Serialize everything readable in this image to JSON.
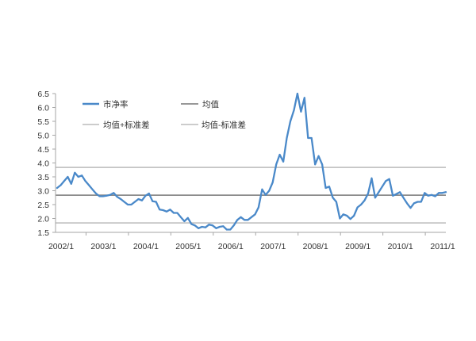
{
  "chart_data": {
    "type": "line",
    "ylim": [
      1.5,
      6.5
    ],
    "grid": false,
    "legend": "top-left",
    "yticks": [
      "1.5",
      "2.0",
      "2.5",
      "3.0",
      "3.5",
      "4.0",
      "4.5",
      "5.0",
      "5.5",
      "6.0",
      "6.5"
    ],
    "xticks": [
      "2002/1",
      "2003/1",
      "2004/1",
      "2005/1",
      "2006/1",
      "2007/1",
      "2008/1",
      "2009/1",
      "2010/1",
      "2011/1"
    ],
    "x": [
      "2002/1",
      "2002/2",
      "2002/3",
      "2002/4",
      "2002/5",
      "2002/6",
      "2002/7",
      "2002/8",
      "2002/9",
      "2002/10",
      "2002/11",
      "2002/12",
      "2003/1",
      "2003/2",
      "2003/3",
      "2003/4",
      "2003/5",
      "2003/6",
      "2003/7",
      "2003/8",
      "2003/9",
      "2003/10",
      "2003/11",
      "2003/12",
      "2004/1",
      "2004/2",
      "2004/3",
      "2004/4",
      "2004/5",
      "2004/6",
      "2004/7",
      "2004/8",
      "2004/9",
      "2004/10",
      "2004/11",
      "2004/12",
      "2005/1",
      "2005/2",
      "2005/3",
      "2005/4",
      "2005/5",
      "2005/6",
      "2005/7",
      "2005/8",
      "2005/9",
      "2005/10",
      "2005/11",
      "2005/12",
      "2006/1",
      "2006/2",
      "2006/3",
      "2006/4",
      "2006/5",
      "2006/6",
      "2006/7",
      "2006/8",
      "2006/9",
      "2006/10",
      "2006/11",
      "2006/12",
      "2007/1",
      "2007/2",
      "2007/3",
      "2007/4",
      "2007/5",
      "2007/6",
      "2007/7",
      "2007/8",
      "2007/9",
      "2007/10",
      "2007/11",
      "2007/12",
      "2008/1",
      "2008/2",
      "2008/3",
      "2008/4",
      "2008/5",
      "2008/6",
      "2008/7",
      "2008/8",
      "2008/9",
      "2008/10",
      "2008/11",
      "2008/12",
      "2009/1",
      "2009/2",
      "2009/3",
      "2009/4",
      "2009/5",
      "2009/6",
      "2009/7",
      "2009/8",
      "2009/9",
      "2009/10",
      "2009/11",
      "2009/12",
      "2010/1",
      "2010/2",
      "2010/3",
      "2010/4",
      "2010/5",
      "2010/6",
      "2010/7",
      "2010/8",
      "2010/9",
      "2010/10",
      "2010/11",
      "2010/12",
      "2011/1",
      "2011/2",
      "2011/3"
    ],
    "series": [
      {
        "name": "市净率",
        "color": "#4a89c9",
        "values": [
          3.1,
          3.2,
          3.35,
          3.5,
          3.25,
          3.65,
          3.5,
          3.55,
          3.35,
          3.2,
          3.05,
          2.9,
          2.8,
          2.8,
          2.82,
          2.85,
          2.92,
          2.78,
          2.7,
          2.6,
          2.5,
          2.5,
          2.6,
          2.7,
          2.65,
          2.82,
          2.9,
          2.62,
          2.6,
          2.32,
          2.3,
          2.25,
          2.32,
          2.2,
          2.2,
          2.05,
          1.9,
          2.02,
          1.8,
          1.75,
          1.65,
          1.7,
          1.68,
          1.78,
          1.75,
          1.65,
          1.7,
          1.72,
          1.6,
          1.6,
          1.75,
          1.95,
          2.05,
          1.95,
          1.95,
          2.05,
          2.15,
          2.4,
          3.05,
          2.85,
          3.0,
          3.3,
          3.95,
          4.3,
          4.05,
          4.9,
          5.5,
          5.9,
          6.5,
          5.85,
          6.35,
          4.9,
          4.9,
          3.95,
          4.25,
          3.95,
          3.1,
          3.15,
          2.75,
          2.6,
          2.0,
          2.15,
          2.1,
          1.98,
          2.1,
          2.4,
          2.5,
          2.65,
          2.9,
          3.45,
          2.75,
          2.95,
          3.15,
          3.35,
          3.42,
          2.82,
          2.88,
          2.95,
          2.75,
          2.55,
          2.38,
          2.55,
          2.6,
          2.6,
          2.92,
          2.82,
          2.85,
          2.8,
          2.92,
          2.92,
          2.95
        ]
      }
    ],
    "reference_lines": [
      {
        "name": "均值",
        "value": 2.84,
        "color": "#8a8a8a"
      },
      {
        "name": "均值+标准差",
        "value": 3.84,
        "color": "#c4c4c4"
      },
      {
        "name": "均值-标准差",
        "value": 1.84,
        "color": "#c4c4c4"
      }
    ]
  }
}
